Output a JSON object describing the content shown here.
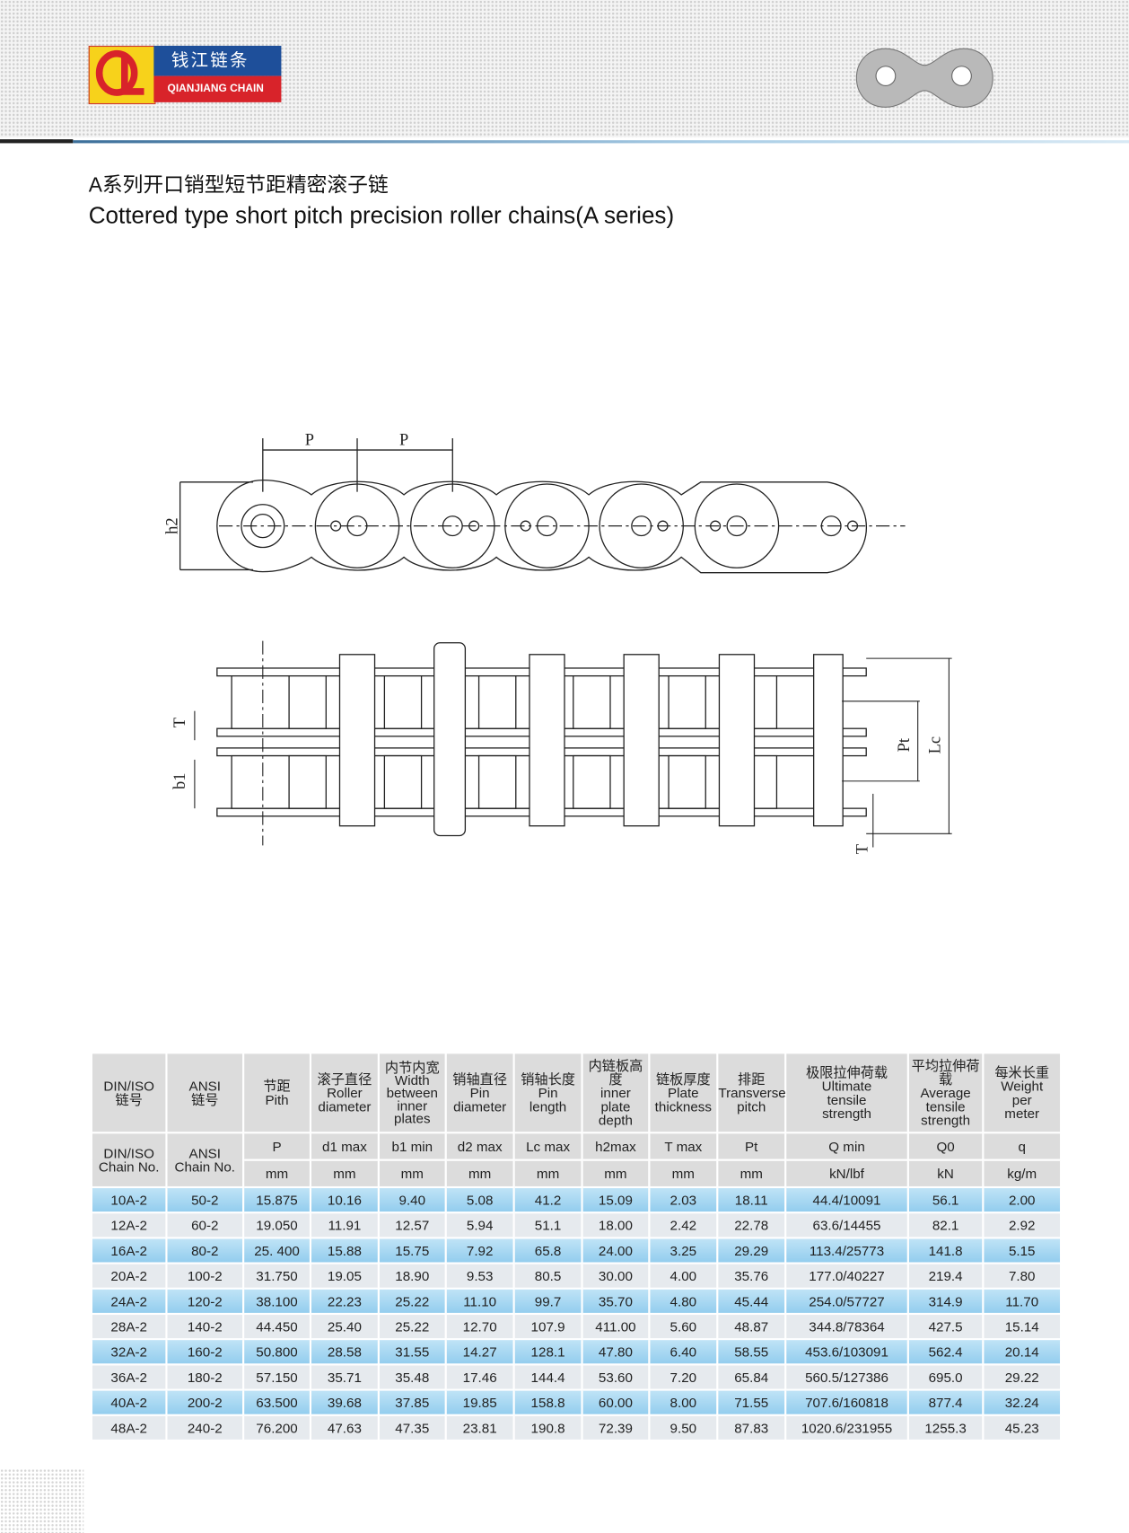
{
  "header": {
    "brand_cn": "钱江链条",
    "brand_en": "QIANJIANG CHAIN"
  },
  "title_cn": "A系列开口销型短节距精密滚子链",
  "title_en": "Cottered type short pitch precision roller chains(A series)",
  "diagram": {
    "pitch_1": "P",
    "pitch_2": "P",
    "plate_height": "h2",
    "plate_thickness": "T",
    "inner_width": "b1",
    "transverse_pitch": "Pt",
    "pin_length": "Lc",
    "plate_thickness_bottom": "T"
  },
  "table": {
    "columns": [
      {
        "top": [
          "DIN/ISO",
          "链号"
        ],
        "symbol": [
          "DIN/ISO",
          "Chain No."
        ]
      },
      {
        "top": [
          "ANSI",
          "链号"
        ],
        "symbol": [
          "ANSI",
          "Chain No."
        ]
      },
      {
        "top": [
          "节距",
          "Pith"
        ],
        "symbol": [
          "P"
        ],
        "unit": "mm"
      },
      {
        "top": [
          "滚子直径",
          "Roller",
          "diameter"
        ],
        "symbol": [
          "d1 max"
        ],
        "unit": "mm"
      },
      {
        "top": [
          "内节内宽",
          "Width",
          "between",
          "inner",
          "plates"
        ],
        "symbol": [
          "b1 min"
        ],
        "unit": "mm"
      },
      {
        "top": [
          "销轴直径",
          "Pin",
          "diameter"
        ],
        "symbol": [
          "d2 max"
        ],
        "unit": "mm"
      },
      {
        "top": [
          "销轴长度",
          "Pin",
          "length"
        ],
        "symbol": [
          "Lc max"
        ],
        "unit": "mm"
      },
      {
        "top": [
          "内链板高度",
          "inner",
          "plate",
          "depth"
        ],
        "symbol": [
          "h2max"
        ],
        "unit": "mm"
      },
      {
        "top": [
          "链板厚度",
          "Plate",
          "thickness"
        ],
        "symbol": [
          "T max"
        ],
        "unit": "mm"
      },
      {
        "top": [
          "排距",
          "Transverse",
          "pitch"
        ],
        "symbol": [
          "Pt"
        ],
        "unit": "mm"
      },
      {
        "top": [
          "极限拉伸荷载",
          "Ultimate",
          "tensile",
          "strength"
        ],
        "symbol": [
          "Q min"
        ],
        "unit": "kN/lbf"
      },
      {
        "top": [
          "平均拉伸荷载",
          "Average",
          "tensile",
          "strength"
        ],
        "symbol": [
          "Q0"
        ],
        "unit": "kN"
      },
      {
        "top": [
          "每米长重",
          "Weight",
          "per",
          "meter"
        ],
        "symbol": [
          "q"
        ],
        "unit": "kg/m"
      }
    ],
    "rows": [
      [
        "10A-2",
        "50-2",
        "15.875",
        "10.16",
        "9.40",
        "5.08",
        "41.2",
        "15.09",
        "2.03",
        "18.11",
        "44.4/10091",
        "56.1",
        "2.00"
      ],
      [
        "12A-2",
        "60-2",
        "19.050",
        "11.91",
        "12.57",
        "5.94",
        "51.1",
        "18.00",
        "2.42",
        "22.78",
        "63.6/14455",
        "82.1",
        "2.92"
      ],
      [
        "16A-2",
        "80-2",
        "25. 400",
        "15.88",
        "15.75",
        "7.92",
        "65.8",
        "24.00",
        "3.25",
        "29.29",
        "113.4/25773",
        "141.8",
        "5.15"
      ],
      [
        "20A-2",
        "100-2",
        "31.750",
        "19.05",
        "18.90",
        "9.53",
        "80.5",
        "30.00",
        "4.00",
        "35.76",
        "177.0/40227",
        "219.4",
        "7.80"
      ],
      [
        "24A-2",
        "120-2",
        "38.100",
        "22.23",
        "25.22",
        "11.10",
        "99.7",
        "35.70",
        "4.80",
        "45.44",
        "254.0/57727",
        "314.9",
        "11.70"
      ],
      [
        "28A-2",
        "140-2",
        "44.450",
        "25.40",
        "25.22",
        "12.70",
        "107.9",
        "411.00",
        "5.60",
        "48.87",
        "344.8/78364",
        "427.5",
        "15.14"
      ],
      [
        "32A-2",
        "160-2",
        "50.800",
        "28.58",
        "31.55",
        "14.27",
        "128.1",
        "47.80",
        "6.40",
        "58.55",
        "453.6/103091",
        "562.4",
        "20.14"
      ],
      [
        "36A-2",
        "180-2",
        "57.150",
        "35.71",
        "35.48",
        "17.46",
        "144.4",
        "53.60",
        "7.20",
        "65.84",
        "560.5/127386",
        "695.0",
        "29.22"
      ],
      [
        "40A-2",
        "200-2",
        "63.500",
        "39.68",
        "37.85",
        "19.85",
        "158.8",
        "60.00",
        "8.00",
        "71.55",
        "707.6/160818",
        "877.4",
        "32.24"
      ],
      [
        "48A-2",
        "240-2",
        "76.200",
        "47.63",
        "47.35",
        "23.81",
        "190.8",
        "72.39",
        "9.50",
        "87.83",
        "1020.6/231955",
        "1255.3",
        "45.23"
      ]
    ]
  }
}
